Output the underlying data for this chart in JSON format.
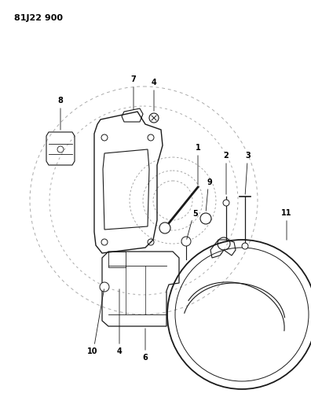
{
  "title": "81J22 900",
  "bg_color": "#ffffff",
  "line_color": "#1a1a1a",
  "label_color": "#000000",
  "fig_width": 3.96,
  "fig_height": 5.33,
  "dpi": 100
}
